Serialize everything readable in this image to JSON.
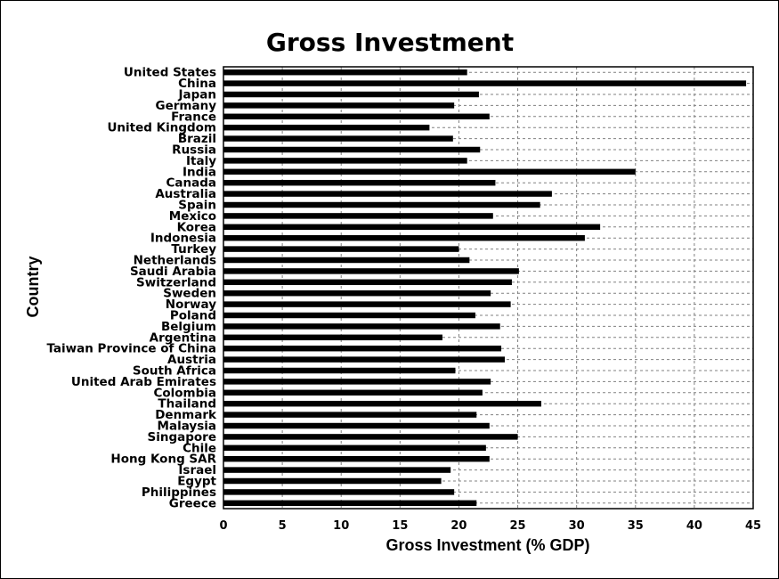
{
  "chart_data": {
    "type": "bar",
    "orientation": "horizontal",
    "title": "Gross Investment",
    "xlabel": "Gross Investment (% GDP)",
    "ylabel": "Country",
    "xlim": [
      0,
      45
    ],
    "xticks": [
      0,
      5,
      10,
      15,
      20,
      25,
      30,
      35,
      40,
      45
    ],
    "grid": true,
    "bar_color": "#000000",
    "categories": [
      "United States",
      "China",
      "Japan",
      "Germany",
      "France",
      "United Kingdom",
      "Brazil",
      "Russia",
      "Italy",
      "India",
      "Canada",
      "Australia",
      "Spain",
      "Mexico",
      "Korea",
      "Indonesia",
      "Turkey",
      "Netherlands",
      "Saudi Arabia",
      "Switzerland",
      "Sweden",
      "Norway",
      "Poland",
      "Belgium",
      "Argentina",
      "Taiwan Province of China",
      "Austria",
      "South Africa",
      "United Arab Emirates",
      "Colombia",
      "Thailand",
      "Denmark",
      "Malaysia",
      "Singapore",
      "Chile",
      "Hong Kong SAR",
      "Israel",
      "Egypt",
      "Philippines",
      "Greece"
    ],
    "values": [
      20.7,
      44.4,
      21.7,
      19.6,
      22.6,
      17.5,
      19.5,
      21.8,
      20.7,
      35.0,
      23.1,
      27.9,
      26.9,
      22.9,
      32.0,
      30.7,
      20.0,
      20.9,
      25.1,
      24.5,
      22.7,
      24.4,
      21.4,
      23.5,
      18.6,
      23.6,
      23.9,
      19.7,
      22.7,
      22.0,
      27.0,
      21.5,
      22.6,
      25.0,
      22.3,
      22.6,
      19.3,
      18.5,
      19.6,
      21.5
    ]
  }
}
